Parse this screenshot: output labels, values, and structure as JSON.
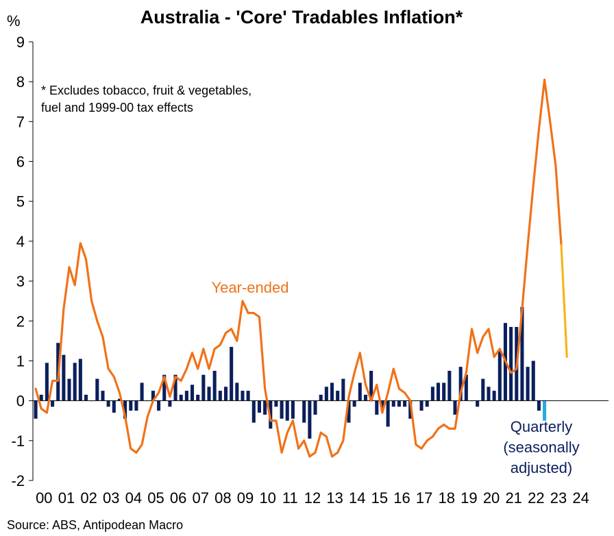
{
  "chart_data": {
    "type": "bar+line",
    "title": "Australia - 'Core' Tradables Inflation*",
    "ylabel": "%",
    "note_lines": [
      "* Excludes tobacco, fruit & vegetables,",
      "fuel and 1999-00 tax effects"
    ],
    "source": "Source: ABS, Antipodean Macro",
    "ylim": [
      -2,
      9
    ],
    "yticks": [
      "-2",
      "-1",
      "0",
      "1",
      "2",
      "3",
      "4",
      "5",
      "6",
      "7",
      "8",
      "9"
    ],
    "x_start_year": 2000,
    "x_tick_labels": [
      "00",
      "01",
      "02",
      "03",
      "04",
      "05",
      "06",
      "07",
      "08",
      "09",
      "10",
      "11",
      "12",
      "13",
      "14",
      "15",
      "16",
      "17",
      "18",
      "19",
      "20",
      "21",
      "22",
      "23",
      "24"
    ],
    "grid": false,
    "series": [
      {
        "name": "Quarterly (seasonally adjusted)",
        "kind": "bar",
        "color": "#0b1f5c",
        "latest_color": "#29abe2",
        "values": [
          -0.45,
          0.15,
          0.95,
          -0.15,
          1.45,
          1.15,
          0.55,
          0.95,
          1.05,
          0.15,
          0.0,
          0.55,
          0.25,
          -0.15,
          -0.3,
          0.05,
          -0.45,
          -0.25,
          -0.25,
          0.45,
          0.0,
          0.25,
          -0.25,
          0.65,
          -0.15,
          0.65,
          0.15,
          0.25,
          0.4,
          0.15,
          0.65,
          0.35,
          0.75,
          0.25,
          0.35,
          1.35,
          0.45,
          0.25,
          0.25,
          -0.55,
          -0.3,
          -0.35,
          -0.7,
          -0.15,
          -0.45,
          -0.5,
          -0.45,
          0.0,
          -0.55,
          -0.95,
          -0.35,
          0.15,
          0.35,
          0.45,
          0.25,
          0.55,
          -0.55,
          -0.15,
          0.45,
          0.15,
          0.75,
          -0.35,
          -0.25,
          -0.65,
          -0.15,
          -0.15,
          -0.15,
          -0.45,
          0.0,
          -0.25,
          -0.15,
          0.35,
          0.45,
          0.45,
          0.75,
          -0.35,
          0.85,
          0.65,
          0.0,
          -0.15,
          0.55,
          0.35,
          0.25,
          1.25,
          1.95,
          1.85,
          1.85,
          2.35,
          0.85,
          1.0,
          -0.25,
          -0.5
        ]
      },
      {
        "name": "Year-ended",
        "kind": "line",
        "color": "#f07219",
        "latest_color": "#f5b51d",
        "values": [
          0.3,
          -0.2,
          -0.3,
          0.5,
          0.5,
          2.3,
          3.35,
          2.9,
          3.95,
          3.55,
          2.5,
          2.0,
          1.6,
          0.8,
          0.6,
          0.2,
          -0.4,
          -1.2,
          -1.3,
          -1.1,
          -0.4,
          0.0,
          0.2,
          0.6,
          0.1,
          0.6,
          0.5,
          0.8,
          1.2,
          0.8,
          1.3,
          0.8,
          1.3,
          1.4,
          1.7,
          1.8,
          1.5,
          2.5,
          2.2,
          2.2,
          2.1,
          0.3,
          -0.5,
          -0.5,
          -1.3,
          -0.8,
          -0.5,
          -1.2,
          -1.0,
          -1.4,
          -1.3,
          -0.8,
          -0.9,
          -1.4,
          -1.3,
          -1.0,
          0.1,
          0.7,
          1.2,
          0.4,
          0.0,
          0.4,
          -0.3,
          0.2,
          0.8,
          0.3,
          0.2,
          0.0,
          -1.1,
          -1.2,
          -1.0,
          -0.9,
          -0.7,
          -0.6,
          -0.7,
          -0.7,
          0.2,
          0.7,
          1.8,
          1.2,
          1.6,
          1.8,
          1.1,
          1.3,
          1.0,
          0.7,
          0.8,
          2.3,
          3.9,
          5.4,
          6.8,
          8.05,
          7.0,
          5.9,
          3.9,
          1.1
        ]
      }
    ],
    "annotations": [
      {
        "text": "Year-ended",
        "series": "Year-ended"
      },
      {
        "text_lines": [
          "Quarterly",
          "(seasonally",
          "adjusted)"
        ],
        "series": "Quarterly (seasonally adjusted)"
      }
    ]
  }
}
